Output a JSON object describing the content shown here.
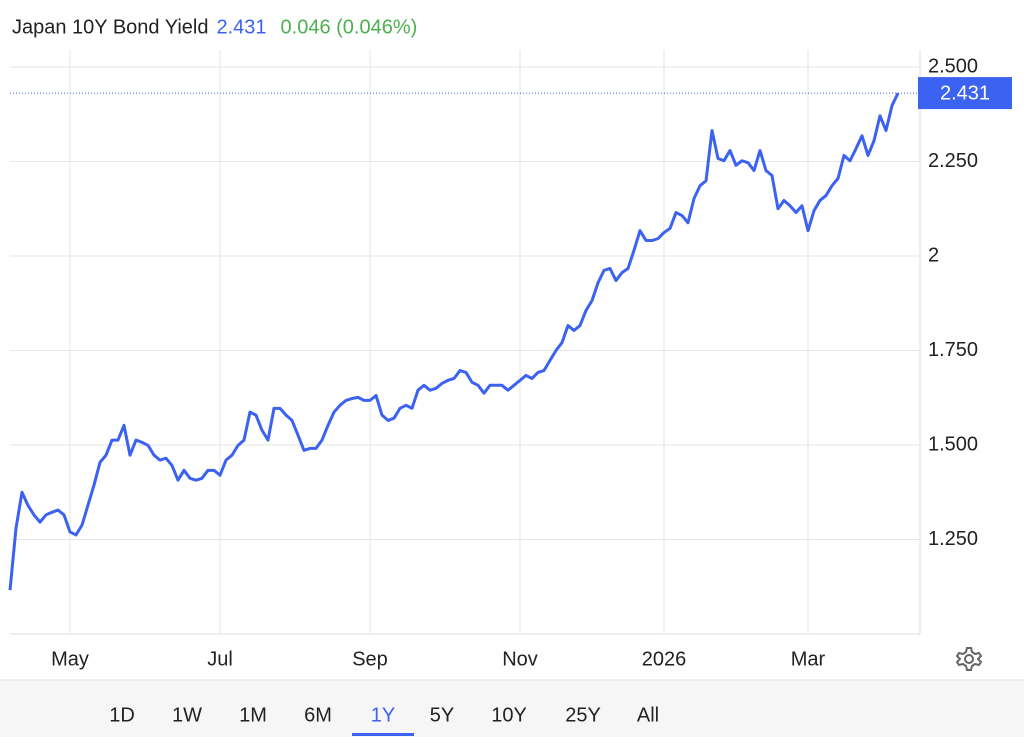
{
  "chart_data": {
    "type": "line",
    "title": "Japan 10Y Bond Yield",
    "price": 2.431,
    "change": "0.046 (0.046%)",
    "categories": [
      null,
      null,
      null,
      null,
      null,
      null,
      null,
      null,
      null,
      null,
      "May",
      null,
      null,
      null,
      null,
      null,
      null,
      null,
      null,
      null,
      null,
      null,
      null,
      null,
      null,
      null,
      null,
      null,
      null,
      null,
      null,
      null,
      null,
      null,
      null,
      "Jul",
      null,
      null,
      null,
      null,
      null,
      null,
      null,
      null,
      null,
      null,
      null,
      null,
      null,
      null,
      null,
      null,
      null,
      null,
      null,
      null,
      null,
      null,
      null,
      null,
      "Sep",
      null,
      null,
      null,
      null,
      null,
      null,
      null,
      null,
      null,
      null,
      null,
      null,
      null,
      null,
      null,
      null,
      null,
      null,
      null,
      null,
      null,
      null,
      null,
      null,
      "Nov",
      null,
      null,
      null,
      null,
      null,
      null,
      null,
      null,
      null,
      null,
      null,
      null,
      null,
      null,
      null,
      null,
      null,
      null,
      null,
      null,
      null,
      null,
      null,
      "2026",
      null,
      null,
      null,
      null,
      null,
      null,
      null,
      null,
      null,
      null,
      null,
      null,
      null,
      null,
      null,
      null,
      null,
      null,
      null,
      null,
      null,
      null,
      null,
      "Mar",
      null,
      null,
      null,
      null,
      null,
      null,
      null,
      null,
      null,
      null,
      null,
      null,
      null,
      null,
      null
    ],
    "series": [
      {
        "name": "Japan 10Y Bond Yield",
        "color": "#3b62f0",
        "values": [
          1.116,
          1.28,
          1.375,
          1.34,
          1.315,
          1.296,
          1.315,
          1.322,
          1.328,
          1.315,
          1.27,
          1.262,
          1.288,
          1.341,
          1.394,
          1.454,
          1.473,
          1.513,
          1.513,
          1.552,
          1.473,
          1.513,
          1.507,
          1.499,
          1.473,
          1.46,
          1.465,
          1.446,
          1.407,
          1.433,
          1.412,
          1.407,
          1.412,
          1.433,
          1.433,
          1.42,
          1.46,
          1.473,
          1.499,
          1.513,
          1.587,
          1.579,
          1.539,
          1.513,
          1.597,
          1.597,
          1.579,
          1.565,
          1.526,
          1.486,
          1.491,
          1.491,
          1.513,
          1.552,
          1.587,
          1.605,
          1.618,
          1.623,
          1.626,
          1.618,
          1.618,
          1.631,
          1.579,
          1.565,
          1.571,
          1.597,
          1.605,
          1.597,
          1.645,
          1.658,
          1.645,
          1.65,
          1.663,
          1.671,
          1.676,
          1.697,
          1.692,
          1.666,
          1.658,
          1.637,
          1.658,
          1.658,
          1.658,
          1.645,
          1.658,
          1.671,
          1.684,
          1.676,
          1.692,
          1.697,
          1.724,
          1.75,
          1.771,
          1.816,
          1.803,
          1.816,
          1.856,
          1.882,
          1.929,
          1.962,
          1.967,
          1.935,
          1.956,
          1.967,
          2.015,
          2.067,
          2.041,
          2.041,
          2.046,
          2.062,
          2.073,
          2.115,
          2.107,
          2.088,
          2.152,
          2.186,
          2.199,
          2.332,
          2.258,
          2.252,
          2.279,
          2.24,
          2.252,
          2.247,
          2.226,
          2.279,
          2.226,
          2.213,
          2.125,
          2.147,
          2.133,
          2.115,
          2.133,
          2.067,
          2.12,
          2.147,
          2.16,
          2.186,
          2.205,
          2.266,
          2.252,
          2.284,
          2.318,
          2.266,
          2.305,
          2.371,
          2.332,
          2.398,
          2.431
        ]
      }
    ],
    "ylim": [
      1,
      2.545
    ],
    "yticks": [
      {
        "value": 1.25,
        "label": "1.250"
      },
      {
        "value": 1.5,
        "label": "1.500"
      },
      {
        "value": 1.75,
        "label": "1.750"
      },
      2,
      {
        "value": 2.25,
        "label": "2.250"
      },
      {
        "value": 2.5,
        "label": "2.500"
      }
    ],
    "grid": true
  },
  "range_buttons": {
    "options": [
      "1D",
      "1W",
      "1M",
      "6M",
      "1Y",
      "5Y",
      "10Y",
      "25Y",
      "All"
    ],
    "selected": "1Y"
  }
}
